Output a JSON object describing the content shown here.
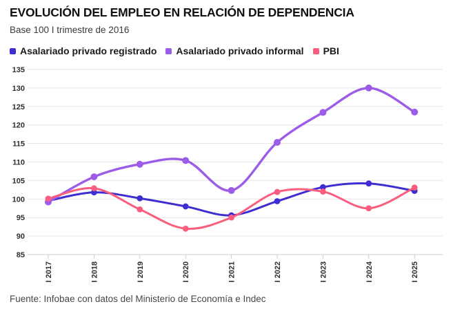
{
  "header": {
    "title": "EVOLUCIÓN DEL EMPLEO EN RELACIÓN DE DEPENDENCIA",
    "subtitle": "Base 100 I trimestre de 2016"
  },
  "footer": {
    "source": "Fuente: Infobae con datos del Ministerio de Economía e Indec"
  },
  "colors": {
    "registered": "#3e2ed1",
    "informal": "#9c5ce8",
    "pbi": "#fa5d7e",
    "grid": "#e6e6e6",
    "axis": "#cccccc",
    "tick_text": "#2e2e2e"
  },
  "chart_data": {
    "type": "line",
    "title": "EVOLUCIÓN DEL EMPLEO EN RELACIÓN DE DEPENDENCIA",
    "subtitle": "Base 100 I trimestre de 2016",
    "categories": [
      "I 2017",
      "I 2018",
      "I 2019",
      "I 2020",
      "I 2021",
      "I 2022",
      "I 2023",
      "I 2024",
      "I 2025"
    ],
    "series": [
      {
        "name": "Asalariado privado registrado",
        "color": "#3e2ed1",
        "values": [
          99.5,
          101.8,
          100.2,
          98.0,
          95.6,
          99.4,
          103.2,
          104.2,
          102.2
        ]
      },
      {
        "name": "Asalariado privado informal",
        "color": "#9c5ce8",
        "values": [
          99.2,
          106.0,
          109.4,
          110.4,
          102.3,
          115.3,
          123.4,
          130.0,
          123.5
        ]
      },
      {
        "name": "PBI",
        "color": "#fa5d7e",
        "values": [
          100.1,
          102.9,
          97.2,
          92.0,
          95.0,
          101.9,
          102.0,
          97.5,
          103.1
        ]
      }
    ],
    "xlabel": "",
    "ylabel": "",
    "ylim": [
      85,
      135
    ],
    "ytick_step": 5,
    "grid": true,
    "legend_position": "top",
    "x_label_rotation": -90
  }
}
